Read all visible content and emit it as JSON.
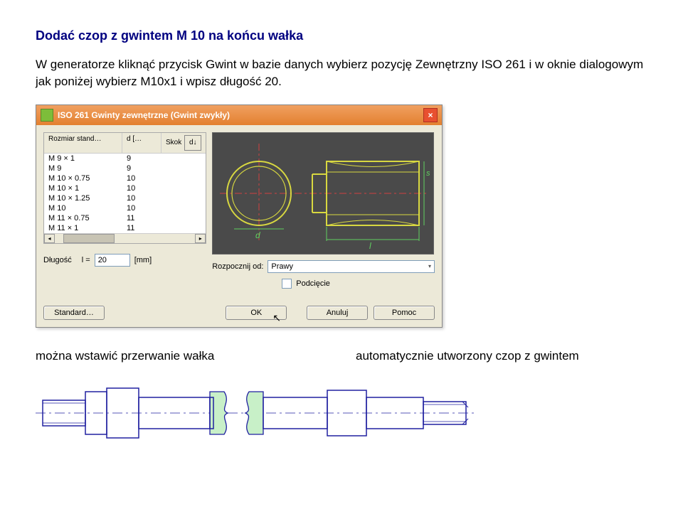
{
  "heading": "Dodać czop z gwintem M 10 na końcu wałka",
  "body_text": "W generatorze kliknąć przycisk Gwint w bazie danych wybierz pozycję Zewnętrzny ISO 261 i w oknie dialogowym jak poniżej wybierz M10x1 i wpisz długość 20.",
  "dialog": {
    "title": "ISO 261  Gwinty zewnętrzne  (Gwint zwykły)",
    "columns": [
      "Rozmiar stand…",
      "d […",
      "Skok"
    ],
    "rows": [
      [
        "M 9 × 1",
        "9",
        ""
      ],
      [
        "M 9",
        "9",
        ""
      ],
      [
        "M 10 × 0.75",
        "10",
        ""
      ],
      [
        "M 10 × 1",
        "10",
        ""
      ],
      [
        "M 10 × 1.25",
        "10",
        ""
      ],
      [
        "M 10",
        "10",
        ""
      ],
      [
        "M 11 × 0.75",
        "11",
        ""
      ],
      [
        "M 11 × 1",
        "11",
        ""
      ]
    ],
    "rozpocznij_label": "Rozpocznij od:",
    "rozpocznij_value": "Prawy",
    "podciecie_label": "Podcięcie",
    "dlugosc_label": "Długość",
    "dlugosc_symbol": "l =",
    "dlugosc_value": "20",
    "dlugosc_unit": "[mm]",
    "btn_standard": "Standard…",
    "btn_ok": "OK",
    "btn_anuluj": "Anuluj",
    "btn_pomoc": "Pomoc",
    "preview": {
      "bg": "#4a4a4a",
      "outline": "#d8d840",
      "centerline": "#d04040",
      "dimtext": "#60d060"
    }
  },
  "bottom_left_text": "można wstawić przerwanie wałka",
  "bottom_right_text": "automatycznie utworzony czop z gwintem",
  "shaft": {
    "bg": "#fff",
    "stroke": "#2020a0",
    "break_fill": "#c8f0c8",
    "axis": "#2020a0"
  }
}
